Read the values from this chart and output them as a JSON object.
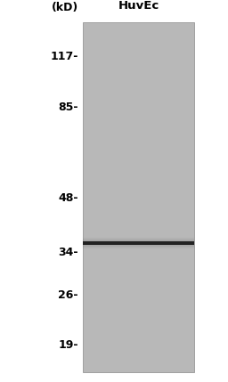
{
  "title": "HuvEc",
  "kd_label": "(kD)",
  "marker_labels": [
    "117-",
    "85-",
    "48-",
    "34-",
    "26-",
    "19-"
  ],
  "marker_positions": [
    117,
    85,
    48,
    34,
    26,
    19
  ],
  "band_kd": 36,
  "band_color": "#222222",
  "gel_color": "#b8b8b8",
  "background_color": "#ffffff",
  "title_fontsize": 9.5,
  "label_fontsize": 9,
  "kd_fontsize": 9,
  "fig_width": 2.56,
  "fig_height": 4.29,
  "dpi": 100
}
